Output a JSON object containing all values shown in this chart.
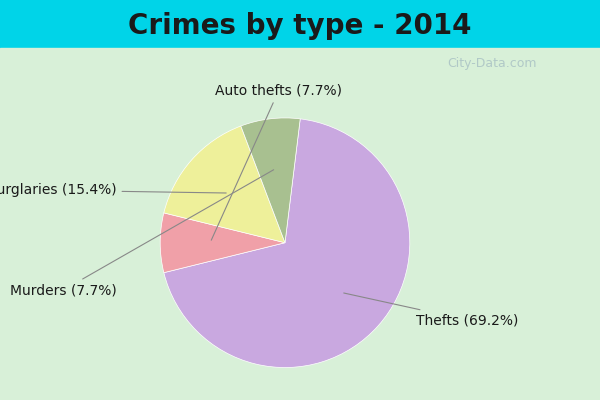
{
  "title": "Crimes by type - 2014",
  "slices": [
    {
      "label": "Thefts",
      "pct": 69.2,
      "color": "#c9a8e0"
    },
    {
      "label": "Auto thefts",
      "pct": 7.7,
      "color": "#f0a0a8"
    },
    {
      "label": "Burglaries",
      "pct": 15.4,
      "color": "#eef09a"
    },
    {
      "label": "Murders",
      "pct": 7.7,
      "color": "#a8c090"
    }
  ],
  "background_top": "#00d4e8",
  "background_main": "#d8f0d8",
  "title_fontsize": 20,
  "title_fontweight": "bold",
  "label_fontsize": 10,
  "watermark": "City-Data.com"
}
